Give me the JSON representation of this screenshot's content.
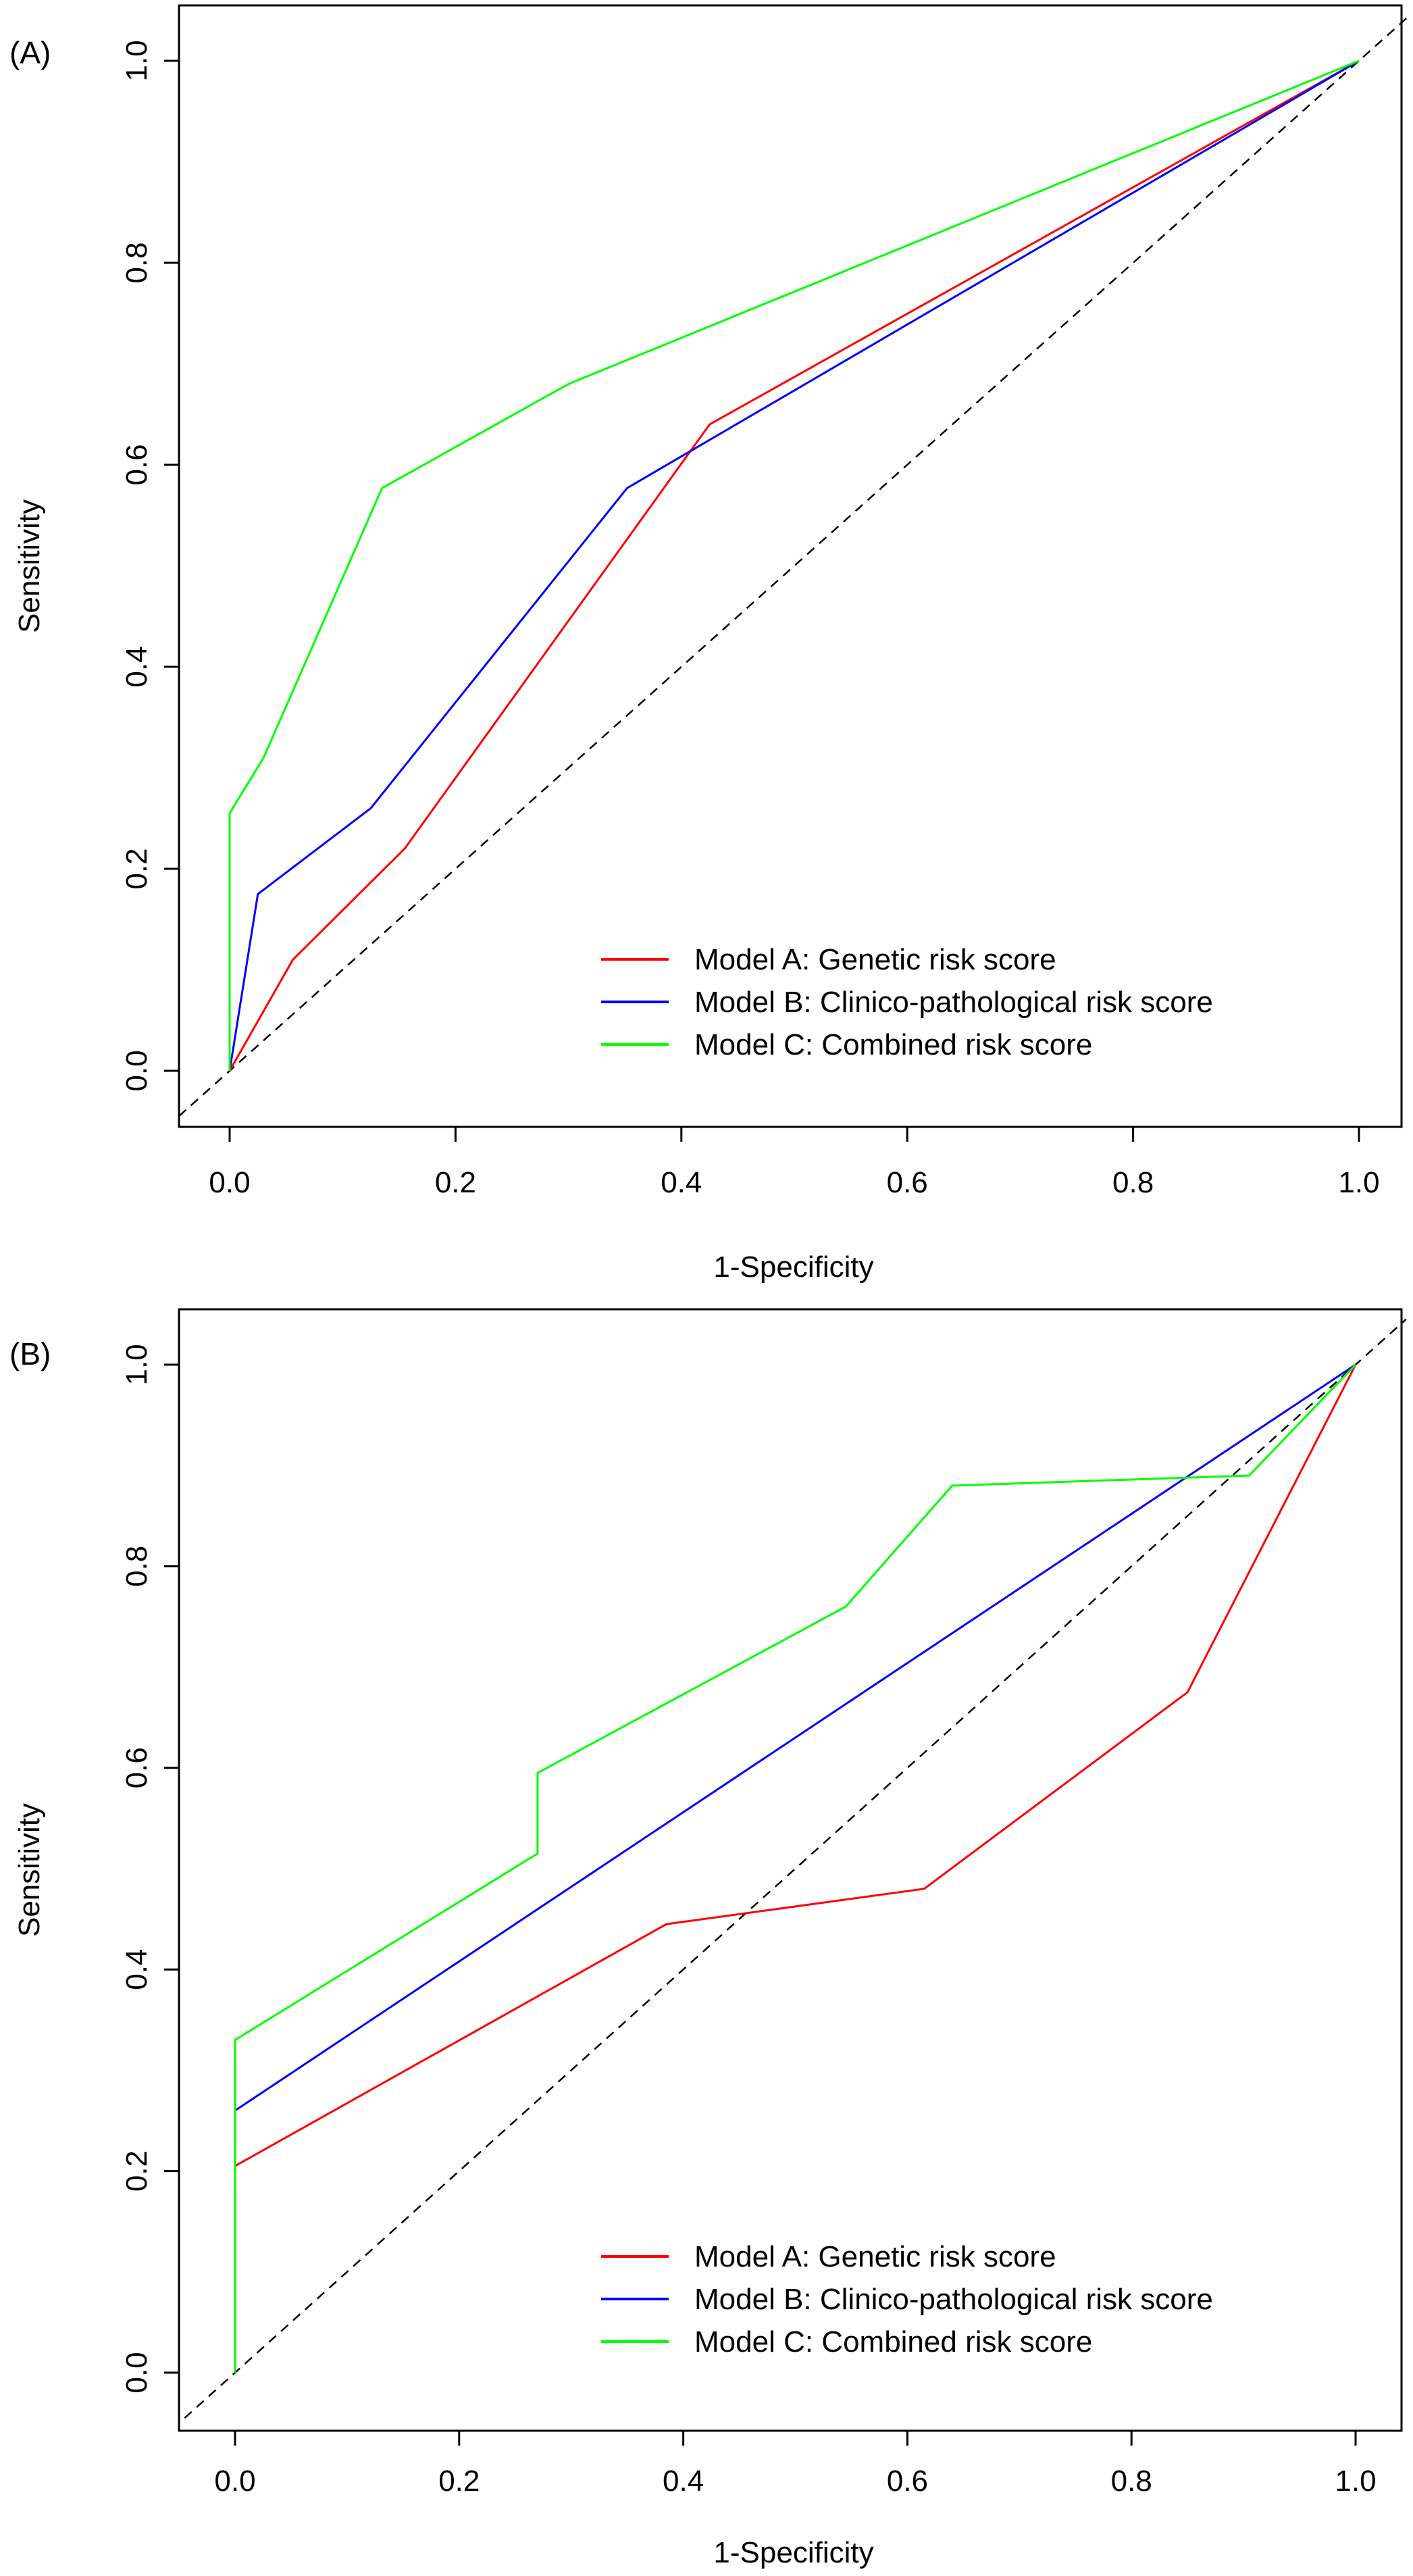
{
  "chart_data": [
    {
      "panel_label": "(A)",
      "type": "line",
      "xlabel": "1-Specificity",
      "ylabel": "Sensitivity",
      "xlim": [
        0,
        1
      ],
      "ylim": [
        0,
        1
      ],
      "xticks": [
        "0.0",
        "0.2",
        "0.4",
        "0.6",
        "0.8",
        "1.0"
      ],
      "yticks": [
        "0.0",
        "0.2",
        "0.4",
        "0.6",
        "0.8",
        "1.0"
      ],
      "grid": false,
      "legend_position": "bottom-right",
      "reference_line": {
        "style": "dashed",
        "color": "#000000",
        "x": [
          0,
          1
        ],
        "y": [
          0,
          1
        ]
      },
      "series": [
        {
          "name": "Model A: Genetic risk score",
          "color": "#ff0000",
          "x": [
            0,
            0.056,
            0.155,
            0.425,
            1.0
          ],
          "y": [
            0,
            0.11,
            0.22,
            0.64,
            1.0
          ]
        },
        {
          "name": "Model B: Clinico-pathological risk score",
          "color": "#0000ff",
          "x": [
            0,
            0.025,
            0.125,
            0.352,
            1.0
          ],
          "y": [
            0,
            0.175,
            0.26,
            0.577,
            1.0
          ]
        },
        {
          "name": "Model C: Combined risk score",
          "color": "#00ff00",
          "x": [
            0,
            0,
            0.03,
            0.135,
            0.3,
            1.0
          ],
          "y": [
            0,
            0.255,
            0.31,
            0.577,
            0.68,
            1.0
          ]
        }
      ]
    },
    {
      "panel_label": "(B)",
      "type": "line",
      "xlabel": "1-Specificity",
      "ylabel": "Sensitivity",
      "xlim": [
        0,
        1
      ],
      "ylim": [
        0,
        1
      ],
      "xticks": [
        "0.0",
        "0.2",
        "0.4",
        "0.6",
        "0.8",
        "1.0"
      ],
      "yticks": [
        "0.0",
        "0.2",
        "0.4",
        "0.6",
        "0.8",
        "1.0"
      ],
      "grid": false,
      "legend_position": "bottom-right",
      "reference_line": {
        "style": "dashed",
        "color": "#000000",
        "x": [
          0,
          1
        ],
        "y": [
          0,
          1
        ]
      },
      "series": [
        {
          "name": "Model A: Genetic risk score",
          "color": "#ff0000",
          "x": [
            0,
            0.385,
            0.615,
            0.85,
            1.0
          ],
          "y": [
            0.205,
            0.445,
            0.48,
            0.675,
            1.0
          ]
        },
        {
          "name": "Model B: Clinico-pathological risk score",
          "color": "#0000ff",
          "x": [
            0,
            1.0
          ],
          "y": [
            0.26,
            1.0
          ]
        },
        {
          "name": "Model C: Combined risk score",
          "color": "#00ff00",
          "x": [
            0,
            0,
            0.27,
            0.27,
            0.545,
            0.64,
            0.905,
            1.0
          ],
          "y": [
            0,
            0.33,
            0.515,
            0.595,
            0.76,
            0.88,
            0.89,
            1.0
          ]
        }
      ]
    }
  ]
}
